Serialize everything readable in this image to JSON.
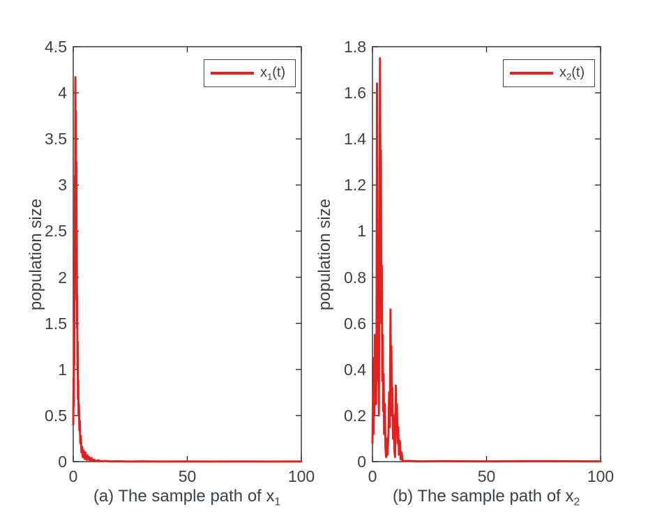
{
  "figure": {
    "background": "#ffffff",
    "line_color": "#e3201e",
    "axis_color": "#2b2b2b",
    "text_color": "#3c414b"
  },
  "chart_data": [
    {
      "type": "line",
      "panel": "a",
      "caption": "(a) The sample path of x",
      "caption_sub": "1",
      "ylabel": "population size",
      "legend": {
        "base": "x",
        "sub": "1",
        "rest": "(t)",
        "position": "top-right",
        "line_color": "#e3201e"
      },
      "xlim": [
        0,
        100
      ],
      "ylim": [
        0,
        4.5
      ],
      "xticks": [
        0,
        50,
        100
      ],
      "yticks": [
        0,
        0.5,
        1,
        1.5,
        2,
        2.5,
        3,
        3.5,
        4,
        4.5
      ],
      "grid": false,
      "series": [
        {
          "name": "x1(t)",
          "color": "#e3201e",
          "points": [
            [
              0,
              0.4
            ],
            [
              0.15,
              0.9
            ],
            [
              0.25,
              0.6
            ],
            [
              0.35,
              1.5
            ],
            [
              0.45,
              1.05
            ],
            [
              0.55,
              2.3
            ],
            [
              0.65,
              1.75
            ],
            [
              0.75,
              3.1
            ],
            [
              0.85,
              2.6
            ],
            [
              0.95,
              4.17
            ],
            [
              1.05,
              3.4
            ],
            [
              1.15,
              3.8
            ],
            [
              1.25,
              2.85
            ],
            [
              1.35,
              3.25
            ],
            [
              1.45,
              2.15
            ],
            [
              1.55,
              2.5
            ],
            [
              1.65,
              1.45
            ],
            [
              1.75,
              1.8
            ],
            [
              1.85,
              1.0
            ],
            [
              1.95,
              1.3
            ],
            [
              2.05,
              0.68
            ],
            [
              2.2,
              0.88
            ],
            [
              2.35,
              0.5
            ],
            [
              2.5,
              0.62
            ],
            [
              2.7,
              0.34
            ],
            [
              2.9,
              0.44
            ],
            [
              3.1,
              0.2
            ],
            [
              3.35,
              0.28
            ],
            [
              3.6,
              0.1
            ],
            [
              3.9,
              0.16
            ],
            [
              4.2,
              0.05
            ],
            [
              4.6,
              0.12
            ],
            [
              5.0,
              0.03
            ],
            [
              5.4,
              0.1
            ],
            [
              5.8,
              0.02
            ],
            [
              6.2,
              0.07
            ],
            [
              6.6,
              0.02
            ],
            [
              7.0,
              0.05
            ],
            [
              7.5,
              0.01
            ],
            [
              8.0,
              0.04
            ],
            [
              8.6,
              0.01
            ],
            [
              9.2,
              0.02
            ],
            [
              10,
              0.005
            ],
            [
              11,
              0.015
            ],
            [
              12,
              0.004
            ],
            [
              14,
              0.008
            ],
            [
              16,
              0.002
            ],
            [
              20,
              0.004
            ],
            [
              25,
              0.001
            ],
            [
              30,
              0.003
            ],
            [
              40,
              0.001
            ],
            [
              50,
              0.002
            ],
            [
              60,
              0.001
            ],
            [
              75,
              0.002
            ],
            [
              90,
              0.001
            ],
            [
              100,
              0.002
            ]
          ]
        }
      ]
    },
    {
      "type": "line",
      "panel": "b",
      "caption": "(b) The sample path of x",
      "caption_sub": "2",
      "ylabel": "population size",
      "legend": {
        "base": "x",
        "sub": "2",
        "rest": "(t)",
        "position": "top-right",
        "line_color": "#e3201e"
      },
      "xlim": [
        0,
        100
      ],
      "ylim": [
        0,
        1.8
      ],
      "xticks": [
        0,
        50,
        100
      ],
      "yticks": [
        0,
        0.2,
        0.4,
        0.6,
        0.8,
        1,
        1.2,
        1.4,
        1.6,
        1.8
      ],
      "grid": false,
      "series": [
        {
          "name": "x2(t)",
          "color": "#e3201e",
          "points": [
            [
              0,
              0.08
            ],
            [
              0.25,
              0.3
            ],
            [
              0.45,
              0.12
            ],
            [
              0.65,
              0.45
            ],
            [
              0.85,
              0.2
            ],
            [
              1.05,
              0.55
            ],
            [
              1.25,
              0.3
            ],
            [
              1.45,
              0.5
            ],
            [
              1.6,
              0.25
            ],
            [
              1.8,
              0.6
            ],
            [
              2.0,
              1.64
            ],
            [
              2.2,
              0.7
            ],
            [
              2.35,
              0.9
            ],
            [
              2.5,
              0.35
            ],
            [
              2.65,
              0.55
            ],
            [
              2.8,
              0.2
            ],
            [
              3.0,
              0.75
            ],
            [
              3.3,
              1.75
            ],
            [
              3.55,
              1.1
            ],
            [
              3.7,
              1.35
            ],
            [
              3.9,
              0.6
            ],
            [
              4.1,
              0.85
            ],
            [
              4.3,
              0.35
            ],
            [
              4.5,
              0.55
            ],
            [
              4.7,
              0.22
            ],
            [
              4.9,
              0.38
            ],
            [
              5.1,
              0.12
            ],
            [
              5.4,
              0.25
            ],
            [
              5.7,
              0.06
            ],
            [
              6.0,
              0.02
            ],
            [
              6.3,
              0.1
            ],
            [
              6.6,
              0.03
            ],
            [
              7.0,
              0.12
            ],
            [
              7.3,
              0.3
            ],
            [
              7.6,
              0.15
            ],
            [
              7.9,
              0.66
            ],
            [
              8.1,
              0.35
            ],
            [
              8.3,
              0.5
            ],
            [
              8.5,
              0.2
            ],
            [
              8.7,
              0.32
            ],
            [
              9.0,
              0.1
            ],
            [
              9.3,
              0.2
            ],
            [
              9.6,
              0.05
            ],
            [
              9.9,
              0.02
            ],
            [
              10.2,
              0.33
            ],
            [
              10.45,
              0.18
            ],
            [
              10.7,
              0.25
            ],
            [
              11.0,
              0.08
            ],
            [
              11.3,
              0.15
            ],
            [
              11.6,
              0.03
            ],
            [
              12.0,
              0.09
            ],
            [
              12.4,
              0.01
            ],
            [
              12.8,
              0.04
            ],
            [
              13.2,
              0.005
            ],
            [
              14,
              0.002
            ],
            [
              16,
              0.003
            ],
            [
              20,
              0.001
            ],
            [
              30,
              0.002
            ],
            [
              50,
              0.001
            ],
            [
              75,
              0.002
            ],
            [
              100,
              0.001
            ]
          ]
        }
      ]
    }
  ]
}
